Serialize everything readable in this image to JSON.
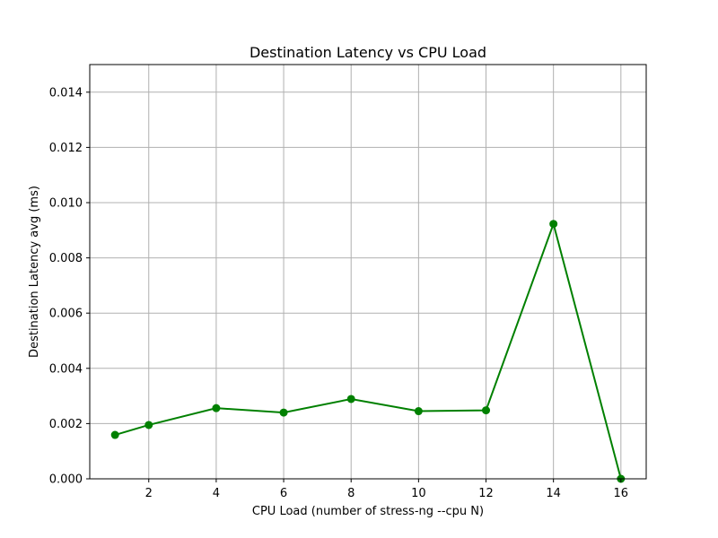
{
  "chart_data": {
    "type": "line",
    "title": "Destination Latency vs CPU Load",
    "xlabel": "CPU Load (number of stress-ng --cpu N)",
    "ylabel": "Destination Latency avg (ms)",
    "x": [
      1,
      2,
      4,
      6,
      8,
      10,
      12,
      14,
      16
    ],
    "series": [
      {
        "values": [
          0.00159,
          0.00195,
          0.00256,
          0.0024,
          0.00289,
          0.00245,
          0.00248,
          0.00923,
          0.0
        ],
        "color": "#008000",
        "marker": "circle"
      }
    ],
    "xlim": [
      0.25,
      16.75
    ],
    "ylim": [
      0,
      0.015
    ],
    "xticks": [
      2,
      4,
      6,
      8,
      10,
      12,
      14,
      16
    ],
    "xtick_labels": [
      "2",
      "4",
      "6",
      "8",
      "10",
      "12",
      "14",
      "16"
    ],
    "yticks": [
      0,
      0.002,
      0.004,
      0.006,
      0.008,
      0.01,
      0.012,
      0.014
    ],
    "ytick_labels": [
      "0.000",
      "0.002",
      "0.004",
      "0.006",
      "0.008",
      "0.010",
      "0.012",
      "0.014"
    ],
    "grid": true,
    "legend": false
  }
}
